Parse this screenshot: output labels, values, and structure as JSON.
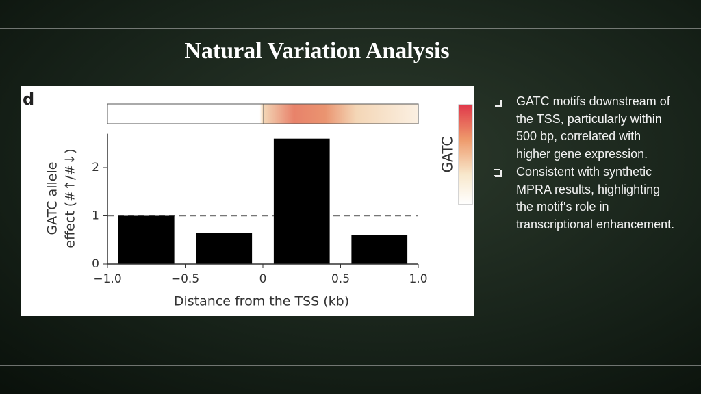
{
  "title": "Natural Variation Analysis",
  "bullets": [
    "GATC motifs downstream of the TSS, particularly within 500 bp, correlated with higher gene expression.",
    "Consistent with synthetic MPRA results, highlighting the motif's role in transcriptional enhancement."
  ],
  "chart_data": {
    "type": "bar",
    "panel_label": "d",
    "heatmap_label": "GATC",
    "x": [
      -0.75,
      -0.25,
      0.25,
      0.75
    ],
    "values": [
      1.0,
      0.64,
      2.6,
      0.61
    ],
    "color": "#000000",
    "xlim": [
      -1,
      1
    ],
    "xticks": [
      {
        "value": -1,
        "label": "−1.0"
      },
      {
        "value": -0.5,
        "label": "−0.5"
      },
      0,
      0.5,
      {
        "value": 1,
        "label": "1.0"
      }
    ],
    "ylim": [
      0,
      2.7
    ],
    "yticks": [
      0,
      1,
      2
    ],
    "reference_line": 1,
    "ylabel": [
      "GATC allele",
      "effect (#↑/#↓)"
    ],
    "xlabel": "Distance from the TSS (kb)"
  }
}
